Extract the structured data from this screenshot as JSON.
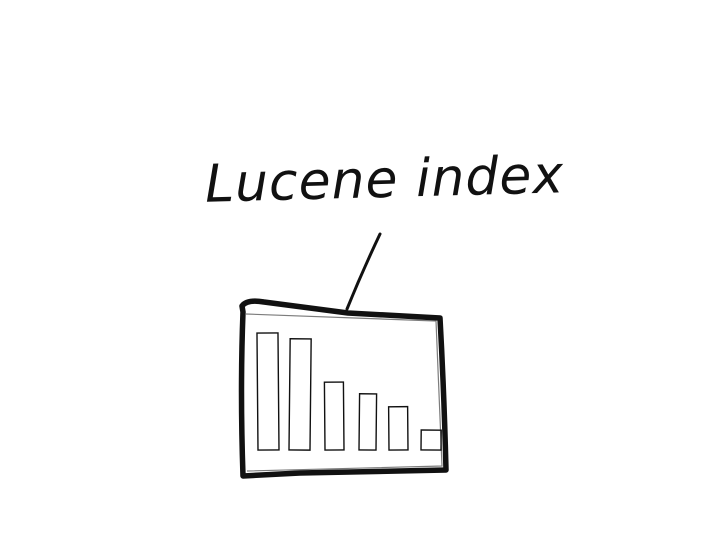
{
  "diagram": {
    "label": "Lucene index",
    "ink_color": "#111111",
    "background_color": "#ffffff",
    "segment_sizes": [
      1.0,
      0.95,
      0.58,
      0.48,
      0.37,
      0.17
    ]
  }
}
